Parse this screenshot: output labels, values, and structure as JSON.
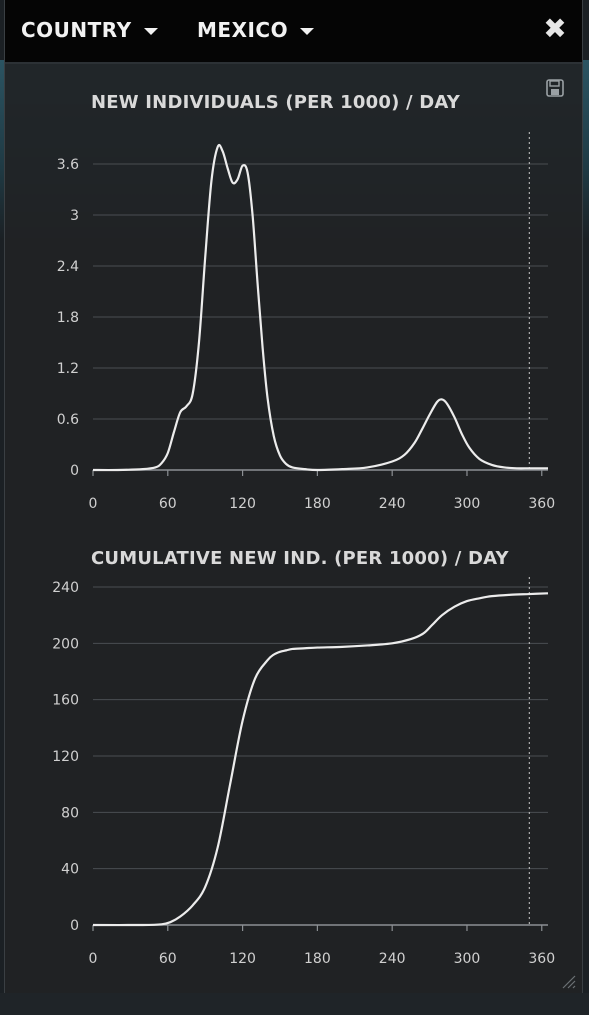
{
  "header": {
    "dropdown_1": "COUNTRY",
    "dropdown_2": "MEXICO",
    "close_icon": "close-icon",
    "save_icon": "floppy-disk-icon"
  },
  "chart_data": [
    {
      "type": "line",
      "title": "NEW INDIVIDUALS (PER 1000) / DAY",
      "xlabel": "",
      "ylabel": "",
      "xlim": [
        0,
        365
      ],
      "ylim": [
        0,
        3.9
      ],
      "xticks": [
        0,
        60,
        120,
        180,
        240,
        300,
        360
      ],
      "yticks": [
        0,
        0.6,
        1.2,
        1.8,
        2.4,
        3,
        3.6
      ],
      "ytick_labels": [
        "0",
        "0.6",
        "1.2",
        "1.8",
        "2.4",
        "3",
        "3.6"
      ],
      "grid": true,
      "marker_x": 350,
      "series": [
        {
          "x": [
            0,
            20,
            40,
            50,
            55,
            60,
            65,
            70,
            75,
            80,
            85,
            90,
            95,
            100,
            104,
            108,
            112,
            116,
            120,
            124,
            128,
            132,
            136,
            140,
            145,
            150,
            155,
            160,
            170,
            180,
            200,
            220,
            240,
            250,
            258,
            264,
            270,
            276,
            280,
            284,
            290,
            296,
            302,
            310,
            320,
            330,
            340,
            350,
            360,
            365
          ],
          "y": [
            0,
            0,
            0.01,
            0.03,
            0.08,
            0.2,
            0.45,
            0.68,
            0.75,
            0.9,
            1.5,
            2.5,
            3.4,
            3.8,
            3.75,
            3.55,
            3.38,
            3.42,
            3.58,
            3.5,
            3.0,
            2.2,
            1.45,
            0.85,
            0.4,
            0.17,
            0.07,
            0.03,
            0.01,
            0.0,
            0.01,
            0.03,
            0.1,
            0.18,
            0.32,
            0.48,
            0.65,
            0.8,
            0.83,
            0.78,
            0.62,
            0.42,
            0.26,
            0.13,
            0.06,
            0.03,
            0.02,
            0.02,
            0.02,
            0.02
          ]
        }
      ]
    },
    {
      "type": "line",
      "title": "CUMULATIVE NEW IND. (PER 1000) / DAY",
      "xlabel": "",
      "ylabel": "",
      "xlim": [
        0,
        365
      ],
      "ylim": [
        0,
        245
      ],
      "xticks": [
        0,
        60,
        120,
        180,
        240,
        300,
        360
      ],
      "yticks": [
        0,
        40,
        80,
        120,
        160,
        200,
        240
      ],
      "grid": true,
      "marker_x": 350,
      "series": [
        {
          "x": [
            0,
            40,
            55,
            62,
            70,
            80,
            90,
            100,
            110,
            120,
            130,
            140,
            145,
            150,
            155,
            160,
            170,
            180,
            200,
            220,
            240,
            255,
            265,
            272,
            280,
            290,
            300,
            310,
            320,
            335,
            350,
            365
          ],
          "y": [
            0,
            0,
            0.5,
            2,
            6,
            14,
            27,
            55,
            100,
            145,
            175,
            188,
            192,
            194,
            195,
            196,
            196.5,
            197,
            197.5,
            198.5,
            200,
            203,
            207,
            213,
            220,
            226,
            230,
            232,
            233.5,
            234.5,
            235,
            235.5
          ]
        }
      ]
    }
  ]
}
